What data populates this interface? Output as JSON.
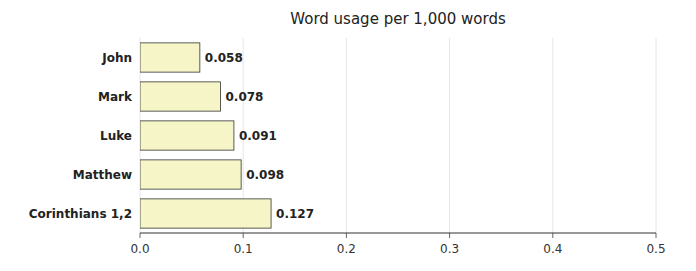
{
  "chart_data": {
    "type": "bar",
    "orientation": "horizontal",
    "title": "Word usage per 1,000 words",
    "categories": [
      "Corinthians 1,2",
      "Matthew",
      "Luke",
      "Mark",
      "John"
    ],
    "values": [
      0.127,
      0.098,
      0.091,
      0.078,
      0.058
    ],
    "color": "#f5f5c8",
    "data_labels": true,
    "xlim": [
      0,
      0.5
    ],
    "xticks": [
      {
        "value": 0.0,
        "label": "0.0"
      },
      0.1,
      0.2,
      0.3,
      0.4,
      0.5
    ]
  }
}
